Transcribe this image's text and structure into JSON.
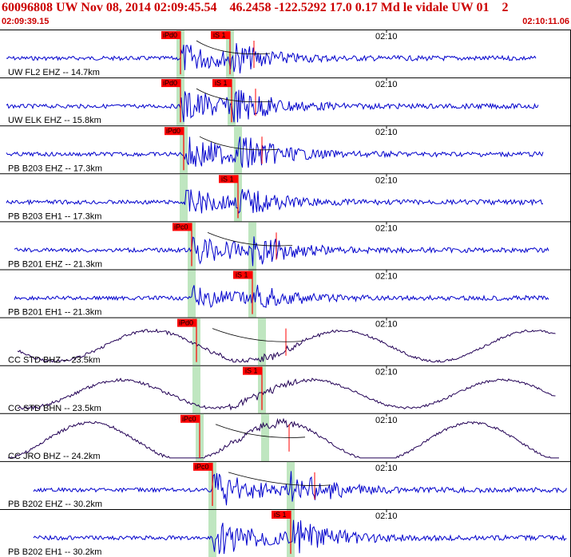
{
  "header": {
    "title": "60096808 UW Nov 08, 2014 02:09:45.54    46.2458 -122.5292 17.0 0.17 Md le vidale UW 01    2",
    "start_time": "02:09:39.15",
    "end_time": "02:10:11.06"
  },
  "time_tick": "02:10",
  "colors": {
    "title": "#cc0000",
    "trace_short_period": "#0000cc",
    "trace_broadband": "#220055",
    "pick_box": "#ff0000",
    "pick_window": "#bfe6c0",
    "separator": "#000000"
  },
  "traces": [
    {
      "label": "UW FL2 EHZ -- 14.7km",
      "pick": "iPd0",
      "pick2": "iS 1",
      "style": "sp"
    },
    {
      "label": "UW ELK EHZ -- 15.8km",
      "pick": "iPd0",
      "pick2": "iS 1",
      "style": "sp"
    },
    {
      "label": "PB B203 EHZ -- 17.3km",
      "pick": "iPd0",
      "pick2": "",
      "style": "sp"
    },
    {
      "label": "PB B203 EH1 -- 17.3km",
      "pick": "",
      "pick2": "iS 1",
      "style": "sp"
    },
    {
      "label": "PB B201 EHZ -- 21.3km",
      "pick": "iPc0",
      "pick2": "",
      "style": "sp"
    },
    {
      "label": "PB B201 EH1 -- 21.3km",
      "pick": "",
      "pick2": "iS 1",
      "style": "sp"
    },
    {
      "label": "CC STD BHZ -- 23.5km",
      "pick": "iPd0",
      "pick2": "",
      "style": "bb"
    },
    {
      "label": "CC STD BHN -- 23.5km",
      "pick": "",
      "pick2": "iS 1",
      "style": "bb"
    },
    {
      "label": "CC JRO BHZ -- 24.2km",
      "pick": "iPc0",
      "pick2": "",
      "style": "bb"
    },
    {
      "label": "PB B202 EHZ -- 30.2km",
      "pick": "iPc0",
      "pick2": "",
      "style": "sp"
    },
    {
      "label": "PB B202 EH1 -- 30.2km",
      "pick": "",
      "pick2": "iS 1",
      "style": "sp"
    }
  ]
}
